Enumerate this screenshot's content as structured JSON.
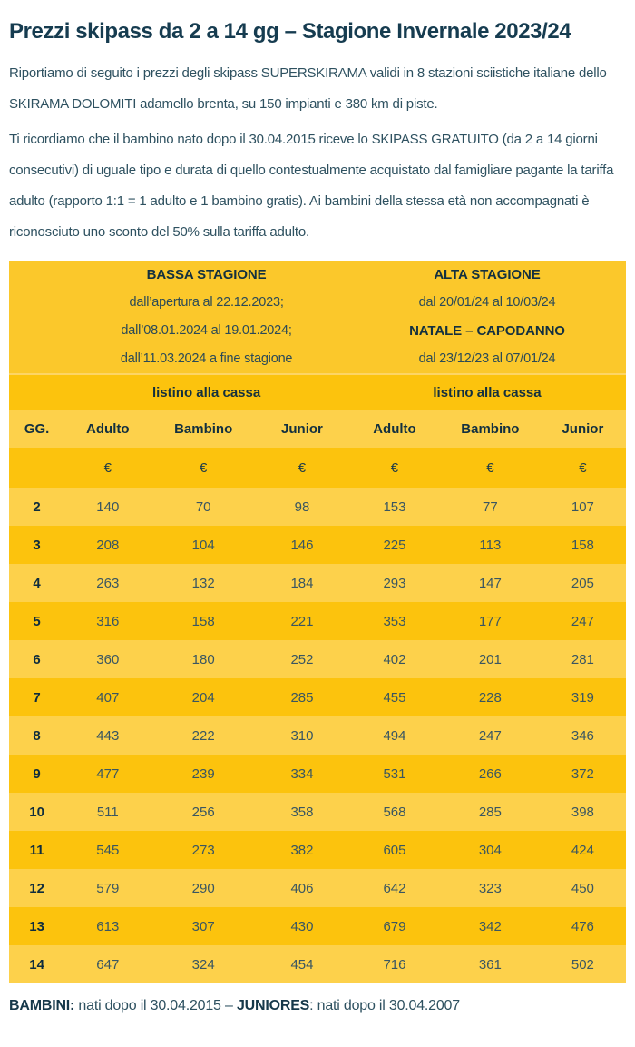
{
  "page": {
    "title": "Prezzi skipass da 2 a 14 gg – Stagione Invernale 2023/24",
    "intro": "Riportiamo di seguito i prezzi degli skipass SUPERSKIRAMA validi in 8 stazioni sciistiche italiane dello SKIRAMA DOLOMITI adamello brenta, su 150 impianti e 380 km di piste.",
    "note": "Ti ricordiamo che il bambino nato dopo il 30.04.2015 riceve lo SKIPASS GRATUITO (da 2 a 14 giorni consecutivi) di uguale tipo e durata di quello contestualmente acquistato dal famigliare pagante la tariffa adulto (rapporto 1:1 = 1 adulto e 1 bambino gratis). Ai bambini della stessa età non accompagnati è riconosciuto uno sconto del 50% sulla tariffa adulto."
  },
  "table": {
    "seasons": {
      "low": {
        "title": "BASSA STAGIONE",
        "periods": [
          "dall’apertura al 22.12.2023;",
          "dall’08.01.2024 al 19.01.2024;",
          "dall’11.03.2024 a fine stagione"
        ]
      },
      "high": {
        "title": "ALTA STAGIONE",
        "period1": "dal 20/01/24 al 10/03/24",
        "subtitle": "NATALE – CAPODANNO",
        "period2": "dal 23/12/23 al 07/01/24"
      }
    },
    "listino_label_low": "listino alla cassa",
    "listino_label_high": "listino alla cassa",
    "columns": [
      "GG.",
      "Adulto",
      "Bambino",
      "Junior",
      "Adulto",
      "Bambino",
      "Junior"
    ],
    "currency": "€",
    "rows": [
      {
        "gg": "2",
        "prices": [
          "140",
          "70",
          "98",
          "153",
          "77",
          "107"
        ]
      },
      {
        "gg": "3",
        "prices": [
          "208",
          "104",
          "146",
          "225",
          "113",
          "158"
        ]
      },
      {
        "gg": "4",
        "prices": [
          "263",
          "132",
          "184",
          "293",
          "147",
          "205"
        ]
      },
      {
        "gg": "5",
        "prices": [
          "316",
          "158",
          "221",
          "353",
          "177",
          "247"
        ]
      },
      {
        "gg": "6",
        "prices": [
          "360",
          "180",
          "252",
          "402",
          "201",
          "281"
        ]
      },
      {
        "gg": "7",
        "prices": [
          "407",
          "204",
          "285",
          "455",
          "228",
          "319"
        ]
      },
      {
        "gg": "8",
        "prices": [
          "443",
          "222",
          "310",
          "494",
          "247",
          "346"
        ]
      },
      {
        "gg": "9",
        "prices": [
          "477",
          "239",
          "334",
          "531",
          "266",
          "372"
        ]
      },
      {
        "gg": "10",
        "prices": [
          "511",
          "256",
          "358",
          "568",
          "285",
          "398"
        ]
      },
      {
        "gg": "11",
        "prices": [
          "545",
          "273",
          "382",
          "605",
          "304",
          "424"
        ]
      },
      {
        "gg": "12",
        "prices": [
          "579",
          "290",
          "406",
          "642",
          "323",
          "450"
        ]
      },
      {
        "gg": "13",
        "prices": [
          "613",
          "307",
          "430",
          "679",
          "342",
          "476"
        ]
      },
      {
        "gg": "14",
        "prices": [
          "647",
          "324",
          "454",
          "716",
          "361",
          "502"
        ]
      }
    ]
  },
  "footer": {
    "bambini_label": "BAMBINI:",
    "bambini_text": "nati dopo il 30.04.2015 –",
    "juniores_label": "JUNIORES",
    "juniores_text": ": nati dopo il 30.04.2007"
  },
  "colors": {
    "season_header_bg": "#fbc82b",
    "row_dark_bg": "#fcc30d",
    "row_light_bg": "#fdd14b",
    "heading_text": "#163c50",
    "body_text": "#2e5160",
    "table_bold_text": "#13303f"
  }
}
